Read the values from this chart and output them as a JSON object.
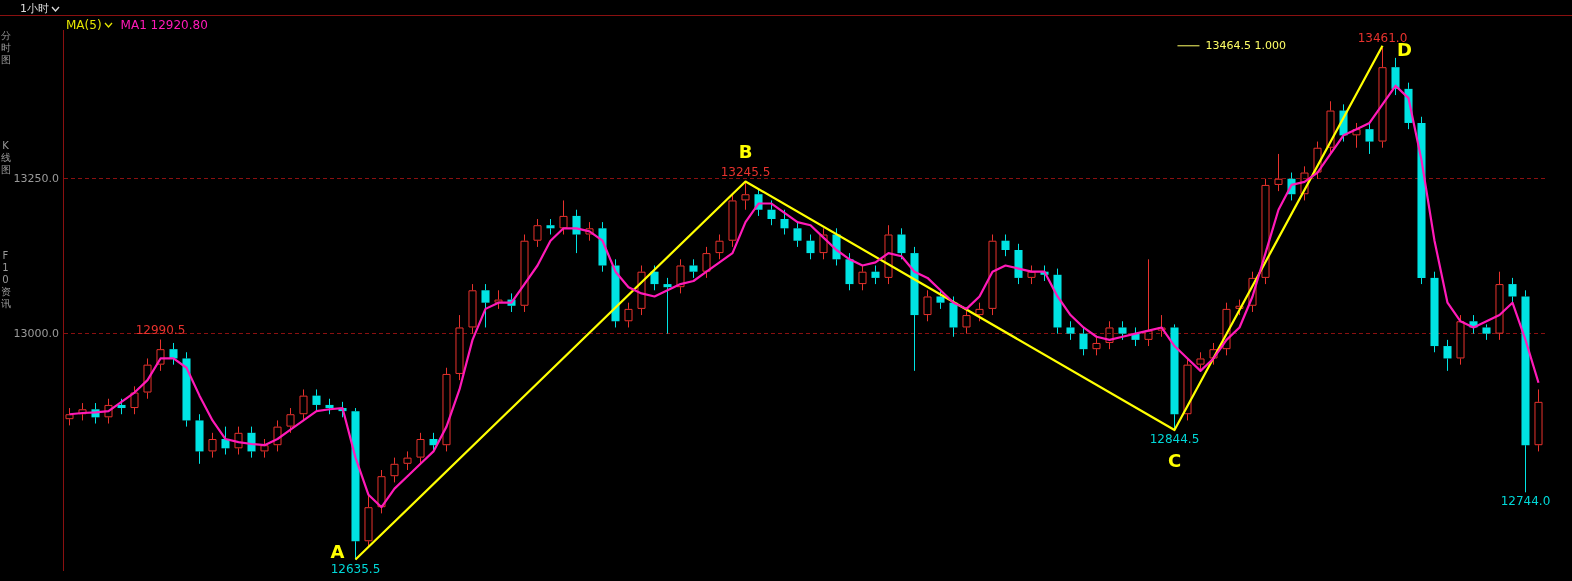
{
  "chart_data": {
    "type": "candlestick",
    "subtitle": "1小时",
    "legend_title": "MA(5)",
    "legend": "top left",
    "categories": [
      null,
      null,
      null,
      null,
      null,
      null,
      null,
      null,
      null,
      null,
      null,
      null,
      null,
      null,
      null,
      null,
      null,
      null,
      null,
      null,
      null,
      null,
      null,
      null,
      null,
      null,
      null,
      null,
      null,
      null,
      null,
      null,
      null,
      null,
      null,
      null,
      null,
      null,
      null,
      null,
      null,
      null,
      null,
      null,
      null,
      null,
      null,
      null,
      null,
      null,
      null,
      null,
      null,
      null,
      null,
      null,
      null,
      null,
      null,
      null,
      null,
      null,
      null,
      null,
      null,
      null,
      null,
      null,
      null,
      null,
      null,
      null,
      null,
      null,
      null,
      null,
      null,
      null,
      null,
      null,
      null,
      null,
      null,
      null,
      null,
      null,
      null,
      null,
      null,
      null,
      null,
      null,
      null,
      null,
      null,
      null,
      null,
      null,
      null,
      null,
      null,
      null,
      null,
      null,
      null,
      null,
      null,
      null,
      null,
      null,
      null,
      null,
      null,
      null
    ],
    "ohlc": [
      [
        12862,
        12880,
        12852,
        12870
      ],
      [
        12870,
        12888,
        12860,
        12878
      ],
      [
        12878,
        12888,
        12855,
        12865
      ],
      [
        12865,
        12895,
        12855,
        12885
      ],
      [
        12885,
        12895,
        12870,
        12880
      ],
      [
        12880,
        12915,
        12870,
        12905
      ],
      [
        12905,
        12960,
        12895,
        12950
      ],
      [
        12950,
        12990.5,
        12940,
        12975
      ],
      [
        12975,
        12985,
        12950,
        12960
      ],
      [
        12960,
        12970,
        12850,
        12860
      ],
      [
        12860,
        12870,
        12790,
        12810
      ],
      [
        12810,
        12840,
        12800,
        12830
      ],
      [
        12830,
        12850,
        12805,
        12815
      ],
      [
        12815,
        12850,
        12805,
        12840
      ],
      [
        12840,
        12850,
        12800,
        12810
      ],
      [
        12810,
        12830,
        12800,
        12820
      ],
      [
        12820,
        12860,
        12810,
        12850
      ],
      [
        12850,
        12880,
        12840,
        12870
      ],
      [
        12870,
        12910,
        12860,
        12900
      ],
      [
        12900,
        12910,
        12875,
        12885
      ],
      [
        12885,
        12895,
        12870,
        12880
      ],
      [
        12880,
        12890,
        12865,
        12875
      ],
      [
        12875,
        12880,
        12635.5,
        12665
      ],
      [
        12665,
        12740,
        12655,
        12720
      ],
      [
        12720,
        12780,
        12710,
        12770
      ],
      [
        12770,
        12800,
        12760,
        12790
      ],
      [
        12790,
        12810,
        12780,
        12800
      ],
      [
        12800,
        12840,
        12790,
        12830
      ],
      [
        12830,
        12840,
        12810,
        12820
      ],
      [
        12820,
        12945,
        12810,
        12935
      ],
      [
        12935,
        13030,
        12925,
        13010
      ],
      [
        13010,
        13080,
        13000,
        13070
      ],
      [
        13070,
        13080,
        13010,
        13050
      ],
      [
        13050,
        13070,
        13040,
        13055
      ],
      [
        13055,
        13065,
        13035,
        13045
      ],
      [
        13045,
        13160,
        13035,
        13150
      ],
      [
        13150,
        13185,
        13140,
        13175
      ],
      [
        13175,
        13185,
        13160,
        13170
      ],
      [
        13170,
        13215,
        13160,
        13190
      ],
      [
        13190,
        13200,
        13130,
        13160
      ],
      [
        13160,
        13180,
        13150,
        13170
      ],
      [
        13170,
        13180,
        13100,
        13110
      ],
      [
        13110,
        13120,
        13010,
        13020
      ],
      [
        13020,
        13050,
        13010,
        13040
      ],
      [
        13040,
        13110,
        13030,
        13100
      ],
      [
        13100,
        13110,
        13070,
        13080
      ],
      [
        13080,
        13090,
        13000,
        13075
      ],
      [
        13075,
        13120,
        13065,
        13110
      ],
      [
        13110,
        13120,
        13090,
        13100
      ],
      [
        13100,
        13140,
        13090,
        13130
      ],
      [
        13130,
        13160,
        13120,
        13150
      ],
      [
        13150,
        13225,
        13140,
        13215
      ],
      [
        13215,
        13245.5,
        13200,
        13225
      ],
      [
        13225,
        13235,
        13190,
        13200
      ],
      [
        13200,
        13215,
        13175,
        13185
      ],
      [
        13185,
        13200,
        13160,
        13170
      ],
      [
        13170,
        13180,
        13140,
        13150
      ],
      [
        13150,
        13160,
        13120,
        13130
      ],
      [
        13130,
        13170,
        13120,
        13160
      ],
      [
        13160,
        13170,
        13110,
        13120
      ],
      [
        13120,
        13130,
        13070,
        13080
      ],
      [
        13080,
        13110,
        13070,
        13100
      ],
      [
        13100,
        13110,
        13080,
        13090
      ],
      [
        13090,
        13175,
        13080,
        13160
      ],
      [
        13160,
        13170,
        13120,
        13130
      ],
      [
        13130,
        13140,
        12940,
        13030
      ],
      [
        13030,
        13070,
        13020,
        13060
      ],
      [
        13060,
        13070,
        13040,
        13050
      ],
      [
        13050,
        13060,
        12995,
        13010
      ],
      [
        13010,
        13040,
        13000,
        13030
      ],
      [
        13030,
        13050,
        13020,
        13040
      ],
      [
        13040,
        13160,
        13030,
        13150
      ],
      [
        13150,
        13160,
        13125,
        13135
      ],
      [
        13135,
        13145,
        13080,
        13090
      ],
      [
        13090,
        13110,
        13080,
        13100
      ],
      [
        13100,
        13110,
        13085,
        13095
      ],
      [
        13095,
        13105,
        13000,
        13010
      ],
      [
        13010,
        13020,
        12990,
        13000
      ],
      [
        13000,
        13010,
        12965,
        12975
      ],
      [
        12975,
        12995,
        12965,
        12985
      ],
      [
        12985,
        13020,
        12975,
        13010
      ],
      [
        13010,
        13020,
        12990,
        13000
      ],
      [
        13000,
        13010,
        12980,
        12990
      ],
      [
        12990,
        13120,
        12980,
        13005
      ],
      [
        13005,
        13030,
        12995,
        13010
      ],
      [
        13010,
        13015,
        12844.5,
        12870
      ],
      [
        12870,
        12960,
        12860,
        12950
      ],
      [
        12950,
        12970,
        12940,
        12960
      ],
      [
        12960,
        12985,
        12950,
        12975
      ],
      [
        12975,
        13050,
        12965,
        13040
      ],
      [
        13040,
        13055,
        13030,
        13045
      ],
      [
        13045,
        13100,
        13035,
        13090
      ],
      [
        13090,
        13250,
        13080,
        13240
      ],
      [
        13240,
        13290,
        13230,
        13250
      ],
      [
        13250,
        13260,
        13215,
        13225
      ],
      [
        13225,
        13270,
        13215,
        13260
      ],
      [
        13260,
        13310,
        13250,
        13300
      ],
      [
        13300,
        13375,
        13290,
        13360
      ],
      [
        13360,
        13370,
        13310,
        13320
      ],
      [
        13320,
        13340,
        13300,
        13330
      ],
      [
        13330,
        13340,
        13290,
        13310
      ],
      [
        13310,
        13461,
        13300,
        13430
      ],
      [
        13430,
        13445,
        13385,
        13395
      ],
      [
        13395,
        13405,
        13330,
        13340
      ],
      [
        13340,
        13350,
        13080,
        13090
      ],
      [
        13090,
        13100,
        12970,
        12980
      ],
      [
        12980,
        12990,
        12940,
        12960
      ],
      [
        12960,
        13030,
        12950,
        13020
      ],
      [
        13020,
        13030,
        13000,
        13010
      ],
      [
        13010,
        13015,
        12990,
        13000
      ],
      [
        13000,
        13100,
        12990,
        13080
      ],
      [
        13080,
        13090,
        13050,
        13060
      ],
      [
        13060,
        13070,
        12744,
        12820
      ],
      [
        12820,
        12910,
        12810,
        12890
      ]
    ],
    "value_labels": [
      null,
      null,
      null,
      null,
      null,
      null,
      null,
      "12990.5",
      null,
      null,
      null,
      null,
      null,
      null,
      null,
      null,
      null,
      null,
      null,
      null,
      null,
      null,
      "12635.5",
      null,
      null,
      null,
      null,
      null,
      null,
      null,
      null,
      null,
      null,
      null,
      null,
      null,
      null,
      null,
      null,
      null,
      null,
      null,
      null,
      null,
      null,
      null,
      null,
      null,
      null,
      null,
      null,
      null,
      "13245.5",
      null,
      null,
      null,
      null,
      null,
      null,
      null,
      null,
      null,
      null,
      null,
      null,
      null,
      null,
      null,
      null,
      null,
      null,
      null,
      null,
      null,
      null,
      null,
      null,
      null,
      null,
      null,
      null,
      null,
      null,
      null,
      null,
      "12844.5",
      null,
      null,
      null,
      null,
      null,
      null,
      null,
      null,
      null,
      null,
      null,
      null,
      null,
      null,
      null,
      "13461.0",
      null,
      null,
      null,
      null,
      null,
      null,
      null,
      null,
      null,
      null,
      "12744.0",
      null
    ],
    "colors": [
      "#e8322d",
      "#e8322d",
      "#00e3e3",
      "#e8322d",
      "#00e3e3",
      "#e8322d",
      "#e8322d",
      "#e8322d",
      "#00e3e3",
      "#00e3e3",
      "#00e3e3",
      "#e8322d",
      "#00e3e3",
      "#e8322d",
      "#00e3e3",
      "#e8322d",
      "#e8322d",
      "#e8322d",
      "#e8322d",
      "#00e3e3",
      "#00e3e3",
      "#00e3e3",
      "#00e3e3",
      "#e8322d",
      "#e8322d",
      "#e8322d",
      "#e8322d",
      "#e8322d",
      "#00e3e3",
      "#e8322d",
      "#e8322d",
      "#e8322d",
      "#00e3e3",
      "#e8322d",
      "#00e3e3",
      "#e8322d",
      "#e8322d",
      "#00e3e3",
      "#e8322d",
      "#00e3e3",
      "#e8322d",
      "#00e3e3",
      "#00e3e3",
      "#e8322d",
      "#e8322d",
      "#00e3e3",
      "#00e3e3",
      "#e8322d",
      "#00e3e3",
      "#e8322d",
      "#e8322d",
      "#e8322d",
      "#e8322d",
      "#00e3e3",
      "#00e3e3",
      "#00e3e3",
      "#00e3e3",
      "#00e3e3",
      "#e8322d",
      "#00e3e3",
      "#00e3e3",
      "#e8322d",
      "#00e3e3",
      "#e8322d",
      "#00e3e3",
      "#00e3e3",
      "#e8322d",
      "#00e3e3",
      "#00e3e3",
      "#e8322d",
      "#e8322d",
      "#e8322d",
      "#00e3e3",
      "#00e3e3",
      "#e8322d",
      "#00e3e3",
      "#00e3e3",
      "#00e3e3",
      "#00e3e3",
      "#e8322d",
      "#e8322d",
      "#00e3e3",
      "#00e3e3",
      "#e8322d",
      "#e8322d",
      "#00e3e3",
      "#e8322d",
      "#e8322d",
      "#e8322d",
      "#e8322d",
      "#e8322d",
      "#e8322d",
      "#e8322d",
      "#e8322d",
      "#00e3e3",
      "#e8322d",
      "#e8322d",
      "#e8322d",
      "#00e3e3",
      "#e8322d",
      "#00e3e3",
      "#e8322d",
      "#00e3e3",
      "#00e3e3",
      "#00e3e3",
      "#00e3e3",
      "#00e3e3",
      "#e8322d",
      "#00e3e3",
      "#00e3e3",
      "#e8322d",
      "#00e3e3",
      "#00e3e3",
      "#e8322d"
    ],
    "series": [
      {
        "type": "line",
        "name": "MA1 12920.80",
        "color": "#ff1ab8",
        "values": [
          12870,
          12872,
          12873,
          12875,
          12890,
          12905,
          12925,
          12960,
          12960,
          12945,
          12900,
          12860,
          12830,
          12825,
          12822,
          12820,
          12830,
          12845,
          12860,
          12875,
          12878,
          12880,
          12800,
          12740,
          12720,
          12750,
          12770,
          12790,
          12810,
          12850,
          12910,
          12990,
          13040,
          13050,
          13050,
          13080,
          13110,
          13150,
          13170,
          13170,
          13165,
          13150,
          13100,
          13075,
          13065,
          13060,
          13070,
          13080,
          13085,
          13100,
          13115,
          13130,
          13180,
          13210,
          13210,
          13195,
          13180,
          13175,
          13155,
          13135,
          13120,
          13110,
          13115,
          13130,
          13125,
          13100,
          13090,
          13070,
          13050,
          13040,
          13060,
          13100,
          13110,
          13105,
          13100,
          13100,
          13060,
          13030,
          13010,
          12995,
          12990,
          12995,
          13000,
          13005,
          13010,
          12980,
          12960,
          12940,
          12960,
          12990,
          13010,
          13060,
          13130,
          13200,
          13240,
          13245,
          13260,
          13290,
          13320,
          13330,
          13340,
          13370,
          13400,
          13380,
          13280,
          13150,
          13050,
          13020,
          13010,
          13020,
          13030,
          13050,
          12990,
          12920.8
        ]
      },
      {
        "type": "line",
        "color": "#ffff00",
        "values": [
          null,
          null,
          null,
          null,
          null,
          null,
          null,
          null,
          null,
          null,
          null,
          null,
          null,
          null,
          null,
          null,
          null,
          null,
          null,
          null,
          null,
          null,
          12635.5,
          null,
          null,
          null,
          null,
          null,
          null,
          null,
          null,
          null,
          null,
          null,
          null,
          null,
          null,
          null,
          null,
          null,
          null,
          null,
          null,
          null,
          null,
          null,
          null,
          null,
          null,
          null,
          null,
          null,
          13245.5,
          null,
          null,
          null,
          null,
          null,
          null,
          null,
          null,
          null,
          null,
          null,
          null,
          null,
          null,
          null,
          null,
          null,
          null,
          null,
          null,
          null,
          null,
          null,
          null,
          null,
          null,
          null,
          null,
          null,
          null,
          null,
          null,
          12844.5,
          null,
          null,
          null,
          null,
          null,
          null,
          null,
          null,
          null,
          null,
          null,
          null,
          null,
          null,
          null,
          13464.5,
          null,
          null,
          null,
          null,
          null,
          null,
          null,
          null,
          null,
          null,
          null,
          null
        ],
        "value_labels": [
          null,
          null,
          null,
          null,
          null,
          null,
          null,
          null,
          null,
          null,
          null,
          null,
          null,
          null,
          null,
          null,
          null,
          null,
          null,
          null,
          null,
          null,
          "A",
          null,
          null,
          null,
          null,
          null,
          null,
          null,
          null,
          null,
          null,
          null,
          null,
          null,
          null,
          null,
          null,
          null,
          null,
          null,
          null,
          null,
          null,
          null,
          null,
          null,
          null,
          null,
          null,
          null,
          "B",
          null,
          null,
          null,
          null,
          null,
          null,
          null,
          null,
          null,
          null,
          null,
          null,
          null,
          null,
          null,
          null,
          null,
          null,
          null,
          null,
          null,
          null,
          null,
          null,
          null,
          null,
          null,
          null,
          null,
          null,
          null,
          null,
          "C",
          null,
          null,
          null,
          null,
          null,
          null,
          null,
          null,
          null,
          null,
          null,
          null,
          null,
          null,
          null,
          "D",
          null,
          null,
          null,
          null,
          null,
          null,
          null,
          null,
          null,
          null,
          null,
          null
        ]
      }
    ],
    "ref_lines": [
      {
        "axis": "y",
        "value": 13464.5,
        "label": "13464.5 1.000",
        "color": "#ffff66"
      }
    ],
    "annotations": [
      "分时图",
      "K线图",
      "F10资讯"
    ],
    "ylim": [
      12618,
      13490
    ],
    "yticks": [
      {
        "value": 13000,
        "label": "13000.0"
      },
      {
        "value": 13250,
        "label": "13250.0"
      }
    ],
    "grid": "y",
    "tick_labels": "y",
    "marker": "none",
    "line_style": "solid"
  }
}
